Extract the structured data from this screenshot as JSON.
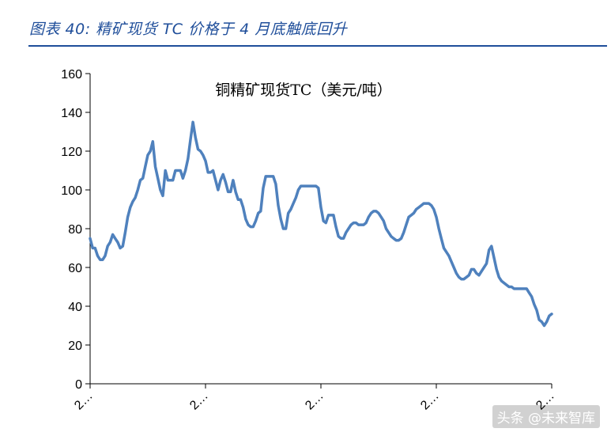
{
  "figure": {
    "caption": "图表 40: 精矿现货 TC 价格于 4 月底触底回升"
  },
  "watermark": "头条 @未来智库",
  "chart_data": {
    "type": "line",
    "title": "铜精矿现货TC（美元/吨）",
    "xlabel": "",
    "ylabel": "",
    "ylim": [
      0,
      160
    ],
    "y_ticks": [
      0,
      20,
      40,
      60,
      80,
      100,
      120,
      140,
      160
    ],
    "x_tick_labels": [
      "2…",
      "2…",
      "2…",
      "2…",
      "2…"
    ],
    "grid": false,
    "color": "#4f81bd",
    "series": [
      {
        "values": [
          75,
          70,
          70,
          66,
          64,
          64,
          66,
          71,
          73,
          77,
          75,
          73,
          70,
          71,
          78,
          86,
          91,
          94,
          96,
          100,
          105,
          106,
          112,
          118,
          120,
          125,
          112,
          106,
          100,
          97,
          110,
          105,
          105,
          105,
          110,
          110,
          110,
          106,
          110,
          116,
          126,
          135,
          127,
          121,
          120,
          118,
          115,
          109,
          109,
          110,
          105,
          100,
          105,
          108,
          104,
          99,
          99,
          105,
          99,
          95,
          95,
          91,
          85,
          82,
          81,
          81,
          84,
          88,
          89,
          101,
          107,
          107,
          107,
          107,
          103,
          92,
          85,
          80,
          80,
          88,
          90,
          93,
          96,
          100,
          102,
          102,
          102,
          102,
          102,
          102,
          102,
          101,
          91,
          84,
          83,
          87,
          87,
          87,
          81,
          76,
          75,
          75,
          78,
          80,
          82,
          83,
          83,
          82,
          82,
          82,
          83,
          86,
          88,
          89,
          89,
          88,
          86,
          84,
          80,
          78,
          76,
          75,
          74,
          74,
          75,
          78,
          82,
          86,
          87,
          88,
          90,
          91,
          92,
          93,
          93,
          93,
          92,
          90,
          86,
          80,
          75,
          70,
          68,
          66,
          63,
          60,
          57,
          55,
          54,
          54,
          55,
          56,
          59,
          59,
          57,
          56,
          58,
          60,
          62,
          69,
          71,
          65,
          59,
          55,
          53,
          52,
          51,
          50,
          50,
          49,
          49,
          49,
          49,
          49,
          49,
          47,
          45,
          41,
          38,
          33,
          32,
          30,
          32,
          35,
          36
        ]
      }
    ]
  }
}
